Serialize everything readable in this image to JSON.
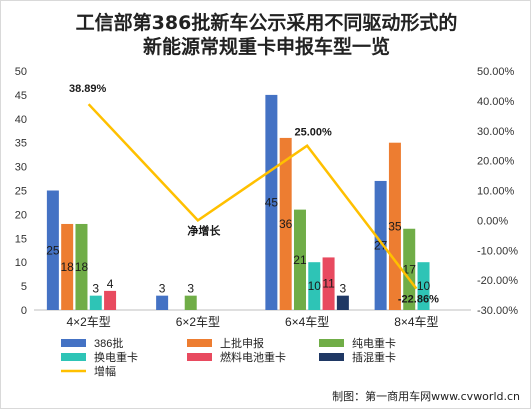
{
  "chart_data": {
    "type": "bar",
    "title": "工信部第386批新车公示采用不同驱动形式的",
    "subtitle": "新能源常规重卡申报车型一览",
    "categories": [
      "4×2车型",
      "6×2车型",
      "6×4车型",
      "8×4车型"
    ],
    "series": [
      {
        "name": "386批",
        "color": "#4472C4",
        "values": [
          25,
          3,
          45,
          27
        ]
      },
      {
        "name": "上批申报",
        "color": "#ED7D31",
        "values": [
          18,
          0,
          36,
          35
        ]
      },
      {
        "name": "纯电重卡",
        "color": "#70AD47",
        "values": [
          18,
          3,
          21,
          17
        ]
      },
      {
        "name": "换电重卡",
        "color": "#2EC4B6",
        "values": [
          3,
          0,
          10,
          10
        ]
      },
      {
        "name": "燃料电池重卡",
        "color": "#E84A5F",
        "values": [
          4,
          0,
          11,
          0
        ]
      },
      {
        "name": "插混重卡",
        "color": "#1F3864",
        "values": [
          0,
          0,
          3,
          0
        ]
      }
    ],
    "data_labels": [
      [
        "25",
        "18",
        "18",
        "3",
        "4",
        ""
      ],
      [
        "3",
        "",
        "3",
        "",
        "",
        ""
      ],
      [
        "45",
        "36",
        "21",
        "10",
        "11",
        "3"
      ],
      [
        "27",
        "35",
        "17",
        "10",
        "",
        ""
      ]
    ],
    "line_series": {
      "name": "增幅",
      "color": "#FFC000",
      "values": [
        38.89,
        0,
        25.0,
        -22.86
      ],
      "labels": [
        "38.89%",
        "净增长",
        "25.00%",
        "-22.86%"
      ]
    },
    "ylim": [
      0,
      50
    ],
    "y_ticks": [
      "0",
      "5",
      "10",
      "15",
      "20",
      "25",
      "30",
      "35",
      "40",
      "45",
      "50"
    ],
    "y2lim": [
      -30,
      50
    ],
    "y2_ticks": [
      "-30.00%",
      "-20.00%",
      "-10.00%",
      "0.00%",
      "10.00%",
      "20.00%",
      "30.00%",
      "40.00%",
      "50.00%"
    ],
    "legend_position": "bottom-left",
    "grid": false
  },
  "credit": "制图：第一商用车网www.cvworld.cn"
}
